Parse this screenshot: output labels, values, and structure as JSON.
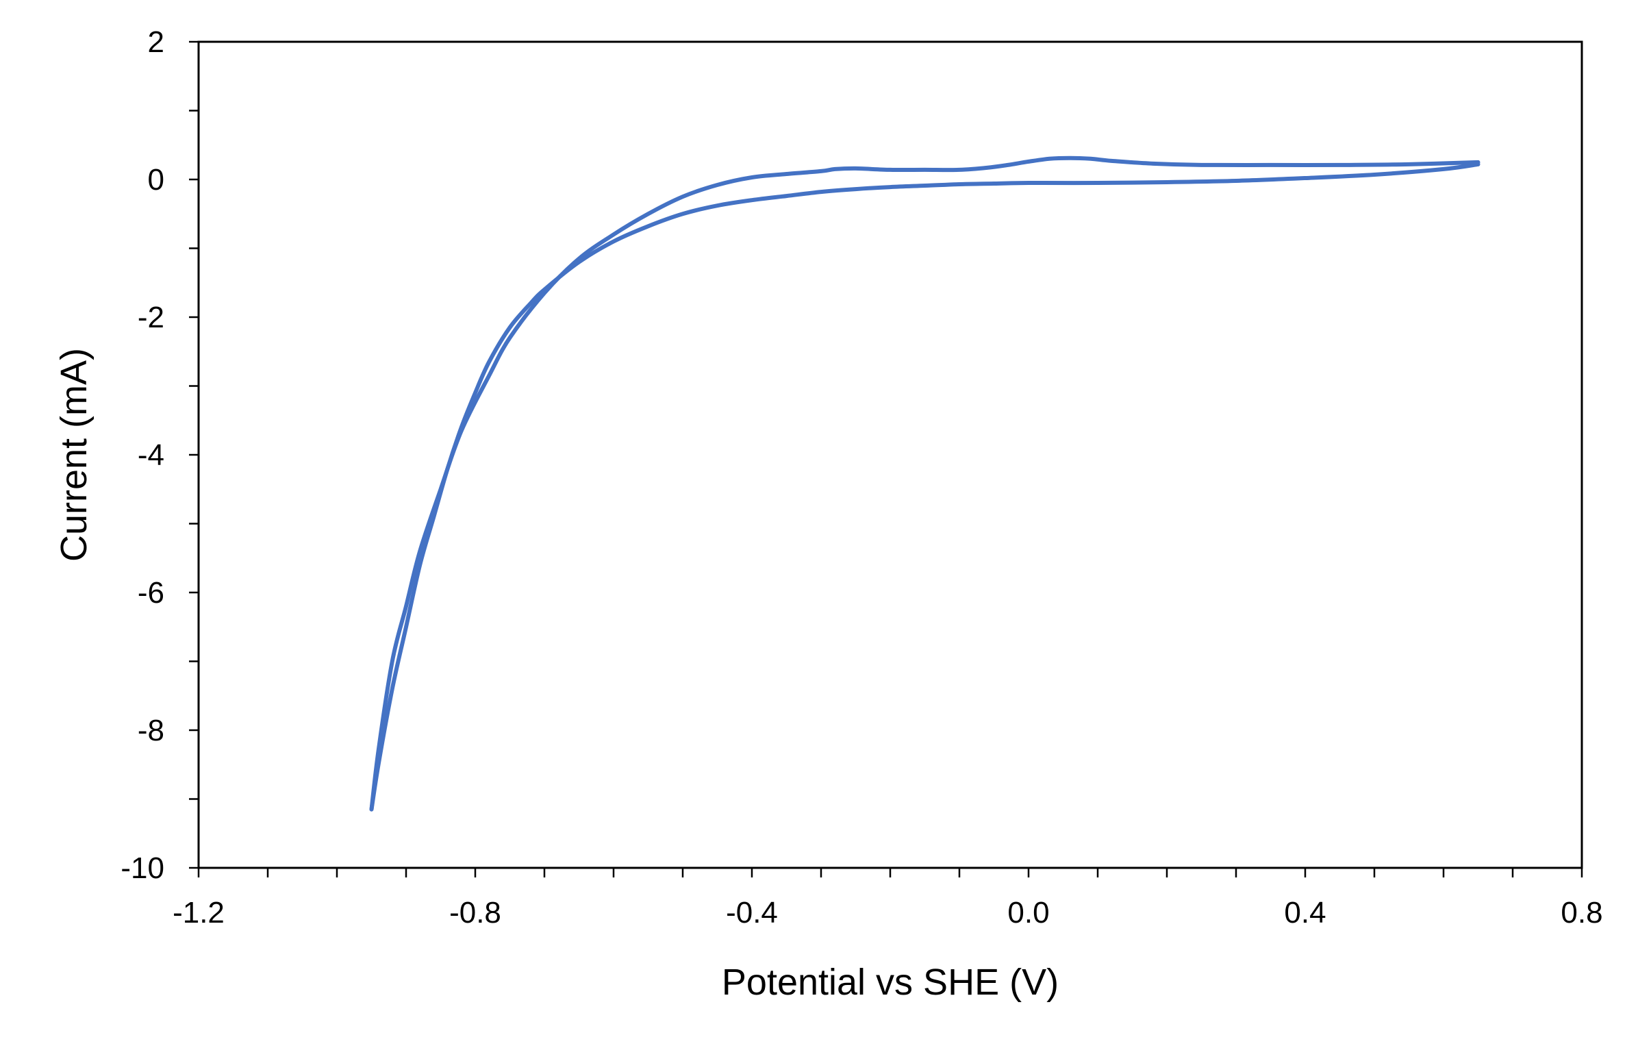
{
  "chart_data": {
    "type": "line",
    "title": "",
    "xlabel": "Potential vs SHE (V)",
    "ylabel": "Current (mA)",
    "xlim": [
      -1.2,
      0.8
    ],
    "ylim": [
      -10,
      2
    ],
    "x_major_ticks": [
      -1.2,
      -0.8,
      -0.4,
      0.0,
      0.4,
      0.8
    ],
    "x_tick_labels": [
      "-1.2",
      "-0.8",
      "-0.4",
      "0.0",
      "0.4",
      "0.8"
    ],
    "x_minor_step": 0.1,
    "y_major_ticks": [
      2,
      0,
      -2,
      -4,
      -6,
      -8,
      -10
    ],
    "y_tick_labels": [
      "2",
      "0",
      "-2",
      "-4",
      "-6",
      "-8",
      "-10"
    ],
    "y_minor_step": 1,
    "grid": false,
    "legend": "none",
    "line_color": "#4472C4",
    "series": [
      {
        "x": [
          0.65,
          0.55,
          0.45,
          0.35,
          0.25,
          0.18,
          0.12,
          0.09,
          0.06,
          0.03,
          0.0,
          -0.03,
          -0.06,
          -0.1,
          -0.15,
          -0.2,
          -0.25,
          -0.28,
          -0.3,
          -0.35,
          -0.4,
          -0.45,
          -0.5,
          -0.55,
          -0.6,
          -0.65,
          -0.7,
          -0.75,
          -0.78,
          -0.82,
          -0.85,
          -0.88,
          -0.9,
          -0.92,
          -0.94,
          -0.95
        ],
        "y": [
          0.25,
          0.22,
          0.21,
          0.21,
          0.21,
          0.23,
          0.27,
          0.3,
          0.31,
          0.3,
          0.26,
          0.21,
          0.17,
          0.14,
          0.14,
          0.14,
          0.16,
          0.15,
          0.12,
          0.08,
          0.03,
          -0.08,
          -0.25,
          -0.5,
          -0.8,
          -1.15,
          -1.65,
          -2.3,
          -2.85,
          -3.65,
          -4.5,
          -5.4,
          -6.2,
          -7.0,
          -8.3,
          -9.15
        ]
      },
      {
        "x": [
          -0.95,
          -0.94,
          -0.92,
          -0.9,
          -0.88,
          -0.86,
          -0.84,
          -0.82,
          -0.8,
          -0.78,
          -0.75,
          -0.72,
          -0.7,
          -0.65,
          -0.6,
          -0.55,
          -0.5,
          -0.45,
          -0.4,
          -0.35,
          -0.3,
          -0.25,
          -0.2,
          -0.15,
          -0.1,
          -0.05,
          0.0,
          0.1,
          0.2,
          0.3,
          0.4,
          0.5,
          0.6,
          0.65
        ],
        "y": [
          -9.15,
          -8.5,
          -7.4,
          -6.5,
          -5.6,
          -4.9,
          -4.2,
          -3.6,
          -3.1,
          -2.65,
          -2.15,
          -1.8,
          -1.6,
          -1.2,
          -0.9,
          -0.68,
          -0.5,
          -0.38,
          -0.3,
          -0.24,
          -0.18,
          -0.14,
          -0.11,
          -0.09,
          -0.07,
          -0.06,
          -0.05,
          -0.05,
          -0.04,
          -0.02,
          0.02,
          0.07,
          0.15,
          0.22
        ]
      }
    ]
  }
}
